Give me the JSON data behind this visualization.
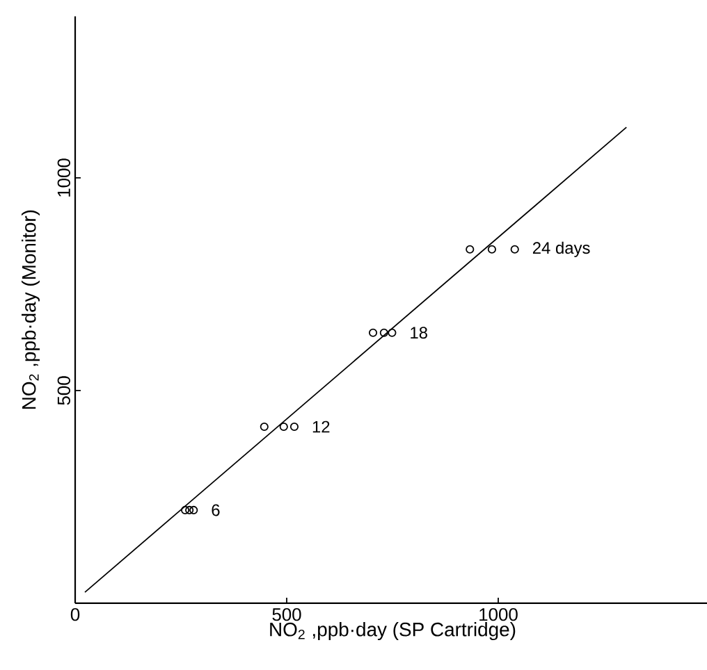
{
  "chart_data": {
    "type": "scatter",
    "xlabel": "NO$_{2}$ ,ppb·day (SP Cartridge)",
    "ylabel": "NO$_{2}$ ,ppb·day (Monitor)",
    "xlim": [
      0,
      1500
    ],
    "ylim": [
      0,
      1380
    ],
    "xticks": [
      0,
      500,
      1000
    ],
    "yticks": [
      500,
      1000
    ],
    "marker": "circle",
    "series": [
      {
        "color": "#000000",
        "x": [
          260,
          270,
          280,
          447,
          493,
          518,
          704,
          730,
          749,
          933,
          985,
          1039
        ],
        "values": [
          219,
          219,
          219,
          415,
          415,
          415,
          636,
          636,
          636,
          832,
          832,
          832
        ]
      },
      {
        "type": "line",
        "marker": "none",
        "color": "#000000",
        "x": [
          23,
          1303
        ],
        "values": [
          26,
          1119
        ]
      }
    ],
    "annotations": [
      {
        "text": "6",
        "x": 280,
        "y": 219
      },
      {
        "text": "12",
        "x": 518,
        "y": 415
      },
      {
        "text": "18",
        "x": 749,
        "y": 636
      },
      {
        "text": "24 days",
        "x": 1039,
        "y": 832
      }
    ]
  }
}
